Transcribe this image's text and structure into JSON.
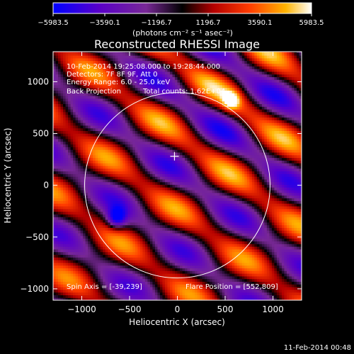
{
  "colorbar": {
    "tick_labels": [
      "−5983.5",
      "−3590.1",
      "−1196.7",
      "1196.7",
      "3590.1",
      "5983.5"
    ],
    "tick_values": [
      -5983.5,
      -3590.1,
      -1196.7,
      1196.7,
      3590.1,
      5983.5
    ],
    "min": -5983.5,
    "max": 5983.5,
    "units_label": "(photons cm⁻² s⁻¹ asec⁻²)",
    "colors": [
      "#0000ff",
      "#5a00c8",
      "#782896",
      "#000000",
      "#b40000",
      "#ff3c00",
      "#ffb400",
      "#ffffff"
    ]
  },
  "chart_data": {
    "type": "heatmap",
    "title": "Reconstructed RHESSI Image",
    "xlabel": "Heliocentric X (arcsec)",
    "ylabel": "Heliocentric Y (arcsec)",
    "xlim": [
      -1300,
      1300
    ],
    "ylim": [
      -1110,
      1290
    ],
    "x_ticks": [
      -1000,
      -500,
      0,
      500,
      1000
    ],
    "x_tick_labels": [
      "−1000",
      "−500",
      "0",
      "500",
      "1000"
    ],
    "y_ticks": [
      -1000,
      -500,
      0,
      500,
      1000
    ],
    "y_tick_labels": [
      "−1000",
      "−500",
      "0",
      "500",
      "1000"
    ],
    "solar_disk_radius": 970,
    "solar_disk_center": [
      0,
      0
    ],
    "flare_position": [
      552,
      809
    ],
    "spin_axis": [
      -39,
      239
    ],
    "center_marker": [
      -30,
      280
    ],
    "annotations": {
      "time_range": "10-Feb-2014 19:25:08.000 to 19:28:44.000",
      "detectors": "Detectors: 7F 8F 9F, Att 0",
      "energy_range": "Energy Range: 6.0 - 25.0 keV",
      "method": "Back Projection",
      "total_counts": "Total counts: 1.62E+04",
      "spin_axis_text": "Spin Axis = [-39,239]",
      "flare_position_text": "Flare Position = [552,809]"
    }
  },
  "footer": {
    "timestamp": "11-Feb-2014 00:48"
  }
}
